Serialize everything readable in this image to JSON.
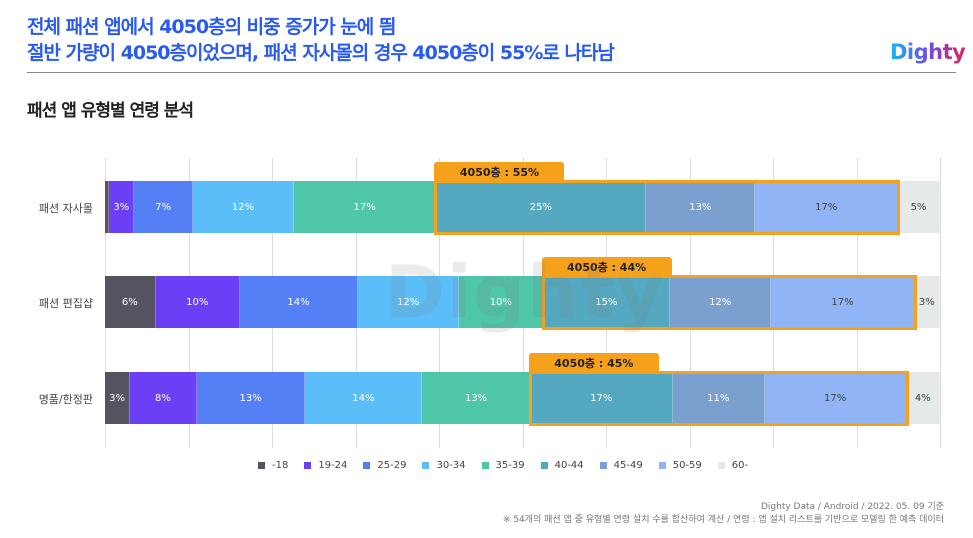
{
  "header": {
    "title_line1": "전체 패션 앱에서 4050층의 비중 증가가 눈에 띔",
    "title_line2": "절반 가량이 4050층이었으며, 패션 자사몰의 경우 4050층이 55%로 나타남",
    "logo": "Dighty",
    "subtitle": "패션 앱 유형별 연령 분석"
  },
  "colors": {
    "accent": "#2a5bf0",
    "highlight": "#f5a11c"
  },
  "chart_data": {
    "type": "bar",
    "orientation": "horizontal",
    "stacked": true,
    "title": "패션 앱 유형별 연령 분석",
    "xlim": [
      0,
      100
    ],
    "grid": true,
    "legend": "bottom",
    "watermark": "Dighty",
    "legend_labels": [
      "-18",
      "19-24",
      "25-29",
      "30-34",
      "35-39",
      "40-44",
      "45-49",
      "50-59",
      "60-"
    ],
    "series_colors": [
      "#55535f",
      "#6a3ff5",
      "#557ff5",
      "#5bbef8",
      "#4fc6a8",
      "#54a8c0",
      "#7b9fcf",
      "#90b4f5",
      "#e6e9e9"
    ],
    "categories": [
      "패션 자사몰",
      "패션 편집샵",
      "명품/한정판"
    ],
    "values": [
      [
        0.5,
        3,
        7,
        12,
        17,
        25,
        13,
        17,
        5
      ],
      [
        6,
        10,
        14,
        12,
        10,
        15,
        12,
        17,
        3
      ],
      [
        3,
        8,
        13,
        14,
        13,
        17,
        11,
        17,
        4
      ]
    ],
    "labels": [
      [
        "",
        "3%",
        "7%",
        "12%",
        "17%",
        "25%",
        "13%",
        "17%",
        "5%"
      ],
      [
        "6%",
        "10%",
        "14%",
        "12%",
        "10%",
        "15%",
        "12%",
        "17%",
        "3%"
      ],
      [
        "3%",
        "8%",
        "13%",
        "14%",
        "13%",
        "17%",
        "11%",
        "17%",
        "4%"
      ]
    ],
    "annotations": [
      "4050층 : 55%",
      "4050층 : 44%",
      "4050층 : 45%"
    ]
  },
  "footer": {
    "source": "Dighty Data / Android / 2022. 05. 09 기준",
    "note": "※ 54개의 패션 앱 중 유형별 연령 설치 수를 합산하여 계산 / 연령 : 앱 설치 리스트를 기반으로 모델링 한 예측 데이터"
  }
}
